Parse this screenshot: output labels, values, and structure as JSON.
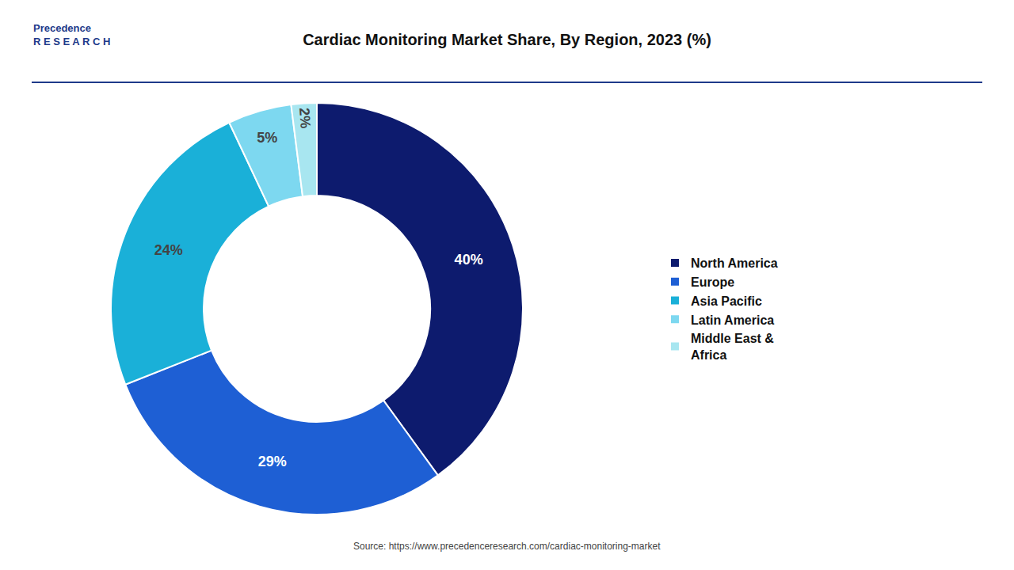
{
  "chart_data": {
    "type": "donut",
    "title": "Cardiac Monitoring Market Share, By Region, 2023 (%)",
    "categories": [
      "North America",
      "Europe",
      "Asia Pacific",
      "Latin America",
      "Middle East &\nAfrica"
    ],
    "values": [
      40,
      29,
      24,
      5,
      2
    ],
    "value_labels": [
      "40%",
      "29%",
      "24%",
      "5%",
      "2%"
    ],
    "colors": [
      "#0d1b6e",
      "#1e5fd4",
      "#1ab0d8",
      "#7dd8f0",
      "#a8e6f0"
    ],
    "data_labels": true,
    "legend": "right",
    "annotations": [
      "Precedence\nR E S E A R C H",
      "Source: https://www.precedenceresearch.com/cardiac-monitoring-market"
    ]
  }
}
